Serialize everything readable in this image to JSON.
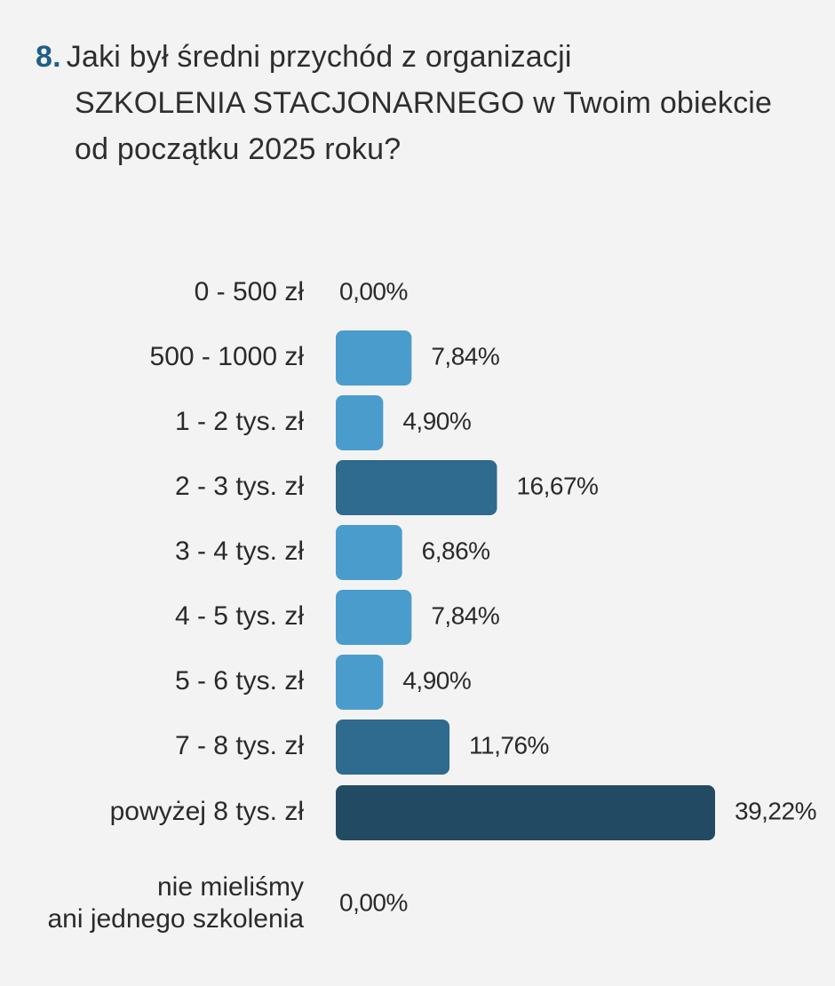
{
  "question": {
    "number": "8.",
    "line1": "Jaki był średni przychód z organizacji",
    "line2": "SZKOLENIA STACJONARNEGO w Twoim obiekcie",
    "line3": "od początku 2025 roku?"
  },
  "chart_data": {
    "type": "bar",
    "orientation": "horizontal",
    "categories": [
      [
        "0 - 500 zł"
      ],
      [
        "500 - 1000 zł"
      ],
      [
        "1 - 2 tys. zł"
      ],
      [
        "2 - 3 tys. zł"
      ],
      [
        "3 - 4 tys. zł"
      ],
      [
        "4 - 5 tys. zł"
      ],
      [
        "5 - 6 tys. zł"
      ],
      [
        "7 - 8 tys. zł"
      ],
      [
        "powyżej 8 tys. zł"
      ],
      [
        "nie mieliśmy",
        "ani jednego szkolenia"
      ]
    ],
    "values": [
      0.0,
      7.84,
      4.9,
      16.67,
      6.86,
      7.84,
      4.9,
      11.76,
      39.22,
      0.0
    ],
    "value_labels": [
      "0,00%",
      "7,84%",
      "4,90%",
      "16,67%",
      "6,86%",
      "7,84%",
      "4,90%",
      "11,76%",
      "39,22%",
      "0,00%"
    ],
    "colors": [
      "#4a9ccd",
      "#4a9ccd",
      "#4a9ccd",
      "#2f6a8f",
      "#4a9ccd",
      "#4a9ccd",
      "#4a9ccd",
      "#2f6a8f",
      "#224a63",
      "#4a9ccd"
    ],
    "xlim": [
      0,
      39.22
    ],
    "grid": false,
    "legend": "none"
  }
}
